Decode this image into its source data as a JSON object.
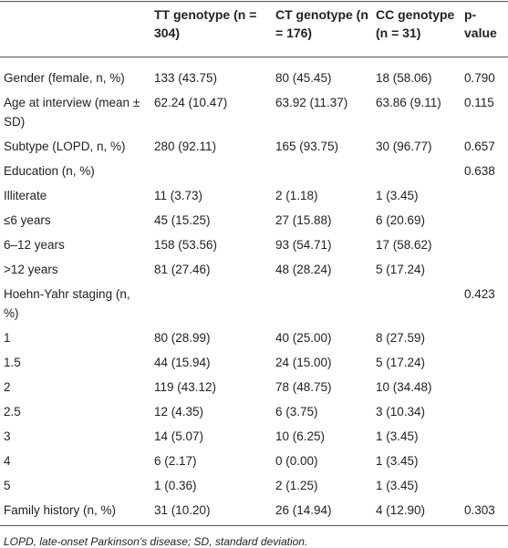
{
  "table": {
    "header": [
      "TT genotype (n = 304)",
      "CT genotype (n = 176)",
      "CC genotype (n = 31)",
      "p-value"
    ],
    "rows": [
      {
        "label": "Gender (female, n, %)",
        "tt": "133 (43.75)",
        "ct": "80 (45.45)",
        "cc": "18 (58.06)",
        "p": "0.790"
      },
      {
        "label": "Age at interview (mean ± SD)",
        "tt": "62.24 (10.47)",
        "ct": "63.92 (11.37)",
        "cc": "63.86 (9.11)",
        "p": "0.115"
      },
      {
        "label": "Subtype (LOPD, n, %)",
        "tt": "280 (92.11)",
        "ct": "165 (93.75)",
        "cc": "30 (96.77)",
        "p": "0.657"
      },
      {
        "label": "Education (n, %)",
        "p": "0.638"
      },
      {
        "label": "Illiterate",
        "tt": "11 (3.73)",
        "ct": "2 (1.18)",
        "cc": "1 (3.45)"
      },
      {
        "label": "≤6 years",
        "tt": "45 (15.25)",
        "ct": "27 (15.88)",
        "cc": "6 (20.69)"
      },
      {
        "label": "6–12 years",
        "tt": "158 (53.56)",
        "ct": "93 (54.71)",
        "cc": "17 (58.62)"
      },
      {
        "label": ">12 years",
        "tt": "81 (27.46)",
        "ct": "48 (28.24)",
        "cc": "5 (17.24)"
      },
      {
        "label": "Hoehn-Yahr staging (n, %)",
        "p": "0.423"
      },
      {
        "label": "1",
        "tt": "80 (28.99)",
        "ct": "40 (25.00)",
        "cc": "8 (27.59)"
      },
      {
        "label": "1.5",
        "tt": "44 (15.94)",
        "ct": "24 (15.00)",
        "cc": "5 (17.24)"
      },
      {
        "label": "2",
        "tt": "119 (43.12)",
        "ct": "78 (48.75)",
        "cc": "10 (34.48)"
      },
      {
        "label": "2.5",
        "tt": "12 (4.35)",
        "ct": "6 (3.75)",
        "cc": "3 (10.34)"
      },
      {
        "label": "3",
        "tt": "14 (5.07)",
        "ct": "10 (6.25)",
        "cc": "1 (3.45)"
      },
      {
        "label": "4",
        "tt": "6 (2.17)",
        "ct": "0 (0.00)",
        "cc": "1 (3.45)"
      },
      {
        "label": "5",
        "tt": "1 (0.36)",
        "ct": "2 (1.25)",
        "cc": "1 (3.45)"
      },
      {
        "label": "Family history (n, %)",
        "tt": "31 (10.20)",
        "ct": "26 (14.94)",
        "cc": "4 (12.90)",
        "p": "0.303"
      }
    ]
  },
  "footnote": "LOPD, late-onset Parkinson’s disease; SD, standard deviation."
}
